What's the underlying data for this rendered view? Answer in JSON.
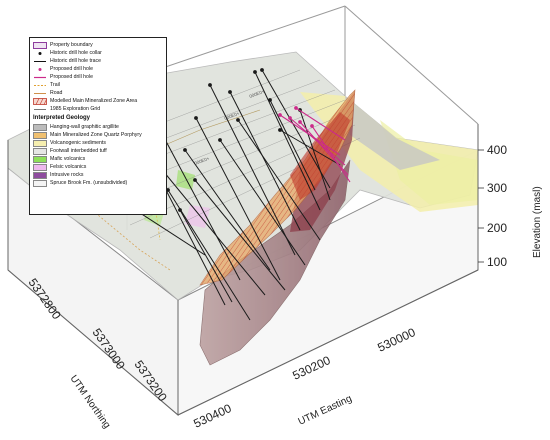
{
  "legend": {
    "items": [
      {
        "label": "Property boundary",
        "symbol": "boundary"
      },
      {
        "label": "Historic drill hole collar",
        "symbol": "collar"
      },
      {
        "label": "Historic drill hole trace",
        "symbol": "trace"
      },
      {
        "label": "Proposed drill hole",
        "symbol": "prop-collar"
      },
      {
        "label": "Proposed drill hole",
        "symbol": "prop-trace"
      },
      {
        "label": "Trail",
        "symbol": "trail"
      },
      {
        "label": "Road",
        "symbol": "road"
      },
      {
        "label": "Modelled Main Mineralized Zone Area",
        "symbol": "zone"
      },
      {
        "label": "1985 Exploration Grid",
        "symbol": "grid"
      }
    ],
    "geology_heading": "Interpreted Geology",
    "geology": [
      {
        "label": "Hanging-wall graphitic argillite",
        "color": "#bcbcbc"
      },
      {
        "label": "Main Mineralized Zone Quartz Porphyry",
        "color": "#f0c070"
      },
      {
        "label": "Volcanogenic sediments",
        "color": "#f6efb0"
      },
      {
        "label": "Footwall interbedded tuff",
        "color": "#e6e6e6"
      },
      {
        "label": "Mafic volcanics",
        "color": "#8ee05a"
      },
      {
        "label": "Felsic volcanics",
        "color": "#eeb8ee"
      },
      {
        "label": "Intrusive rocks",
        "color": "#8e4c9e"
      },
      {
        "label": "Spruce Brook Fm. (unsubdivided)",
        "color": "#f4f4f4"
      }
    ]
  },
  "axes": {
    "northing_label": "UTM Northing",
    "northing_ticks": [
      "5372800",
      "5373000",
      "5373200"
    ],
    "easting_label": "UTM Easting",
    "easting_ticks": [
      "530400",
      "530200",
      "530000"
    ],
    "elevation_label": "Elevation (masl)",
    "elevation_ticks": [
      "400",
      "300",
      "200",
      "100"
    ]
  },
  "colors": {
    "surface": "#dfe2dc",
    "zone": "#c0392b",
    "solid": "#a88c8c",
    "porphyry": "#e8b070",
    "drill": "#1a1a1a",
    "proposed": "#cc2a8a"
  }
}
